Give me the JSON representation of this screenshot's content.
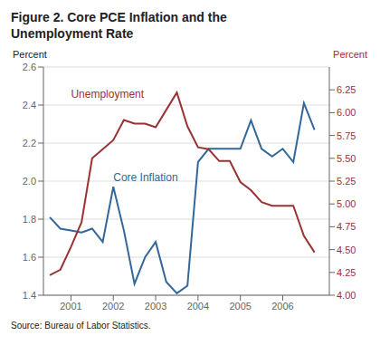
{
  "chart_data": {
    "type": "line",
    "title": [
      "Figure 2.  Core PCE Inflation and the",
      "Unemployment Rate"
    ],
    "ylabel": "Percent",
    "y2label": "Percent",
    "source": "Source: Bureau of Labor Statistics.",
    "x": [
      2000.5,
      2000.75,
      2001.0,
      2001.25,
      2001.5,
      2001.75,
      2002.0,
      2002.25,
      2002.5,
      2002.75,
      2003.0,
      2003.25,
      2003.5,
      2003.75,
      2004.0,
      2004.25,
      2004.5,
      2004.75,
      2005.0,
      2005.25,
      2005.5,
      2005.75,
      2006.0,
      2006.25,
      2006.5,
      2006.75
    ],
    "series": [
      {
        "name": "Core Inflation",
        "color": "#336699",
        "values": [
          1.81,
          1.75,
          1.74,
          1.73,
          1.75,
          1.68,
          1.97,
          1.74,
          1.46,
          1.6,
          1.68,
          1.47,
          1.41,
          1.45,
          2.1,
          2.17,
          2.17,
          2.17,
          2.17,
          2.32,
          2.17,
          2.13,
          2.17,
          2.1,
          2.41,
          2.27
        ]
      },
      {
        "name": "Unemployment",
        "color": "#993333",
        "axis": "y2",
        "values": [
          4.22,
          4.28,
          4.53,
          4.8,
          5.5,
          5.6,
          5.7,
          5.92,
          5.88,
          5.88,
          5.84,
          6.03,
          6.22,
          5.85,
          5.62,
          5.6,
          5.47,
          5.47,
          5.24,
          5.15,
          5.02,
          4.98,
          4.98,
          4.98,
          4.65,
          4.47
        ]
      }
    ],
    "xlim": [
      2000.35,
      2007.1
    ],
    "xticks": [
      2001,
      2002,
      2003,
      2004,
      2005,
      2006
    ],
    "ylim": [
      1.4,
      2.6
    ],
    "yticks": [
      1.4,
      1.6,
      1.8,
      {
        "value": 2.0,
        "label": "2.0"
      },
      2.2,
      2.4,
      2.6
    ],
    "y2lim": [
      4.0,
      6.5
    ],
    "y2ticks": [
      {
        "value": 4.0,
        "label": "4.00"
      },
      4.25,
      {
        "value": 4.5,
        "label": "4.50"
      },
      4.75,
      {
        "value": 5.0,
        "label": "5.00"
      },
      5.25,
      {
        "value": 5.5,
        "label": "5.50"
      },
      5.75,
      {
        "value": 6.0,
        "label": "6.00"
      },
      6.25
    ],
    "grid": true,
    "annotations": [
      {
        "text": "Unemployment",
        "x": 2001.0,
        "y": 2.46,
        "color": "#993333"
      },
      {
        "text": "Core Inflation",
        "x": 2002.0,
        "y": 2.02,
        "color": "#336699"
      }
    ]
  }
}
